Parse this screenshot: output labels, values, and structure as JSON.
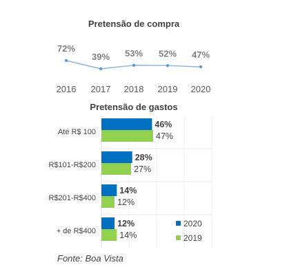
{
  "chart_data": [
    {
      "type": "line",
      "title": "Pretensão de compra",
      "categories": [
        "2016",
        "2017",
        "2018",
        "2019",
        "2020"
      ],
      "values": [
        72,
        39,
        53,
        52,
        47
      ],
      "labels": [
        "72%",
        "39%",
        "53%",
        "52%",
        "47%"
      ],
      "xlabel": "",
      "ylabel": "",
      "ylim": [
        0,
        100
      ],
      "grid": false,
      "colors": {
        "line": "#8fb4dc",
        "marker": "#5b9bd5",
        "label": "#7f7f7f",
        "tick": "#595959"
      }
    },
    {
      "type": "bar",
      "orientation": "horizontal",
      "title": "Pretensão de gastos",
      "categories": [
        "Até R$ 100",
        "R$101-R$200",
        "R$201-R$400",
        "+ de R$400"
      ],
      "series": [
        {
          "name": "2020",
          "values": [
            46,
            28,
            14,
            12
          ],
          "labels": [
            "46%",
            "28%",
            "14%",
            "12%"
          ],
          "color": "#0070c0"
        },
        {
          "name": "2019",
          "values": [
            47,
            27,
            12,
            14
          ],
          "labels": [
            "47%",
            "27%",
            "12%",
            "14%"
          ],
          "color": "#92d050"
        }
      ],
      "xlim": [
        0,
        100
      ],
      "grid": true,
      "legend": "bottom-right"
    }
  ],
  "source": "Fonte: Boa Vista"
}
